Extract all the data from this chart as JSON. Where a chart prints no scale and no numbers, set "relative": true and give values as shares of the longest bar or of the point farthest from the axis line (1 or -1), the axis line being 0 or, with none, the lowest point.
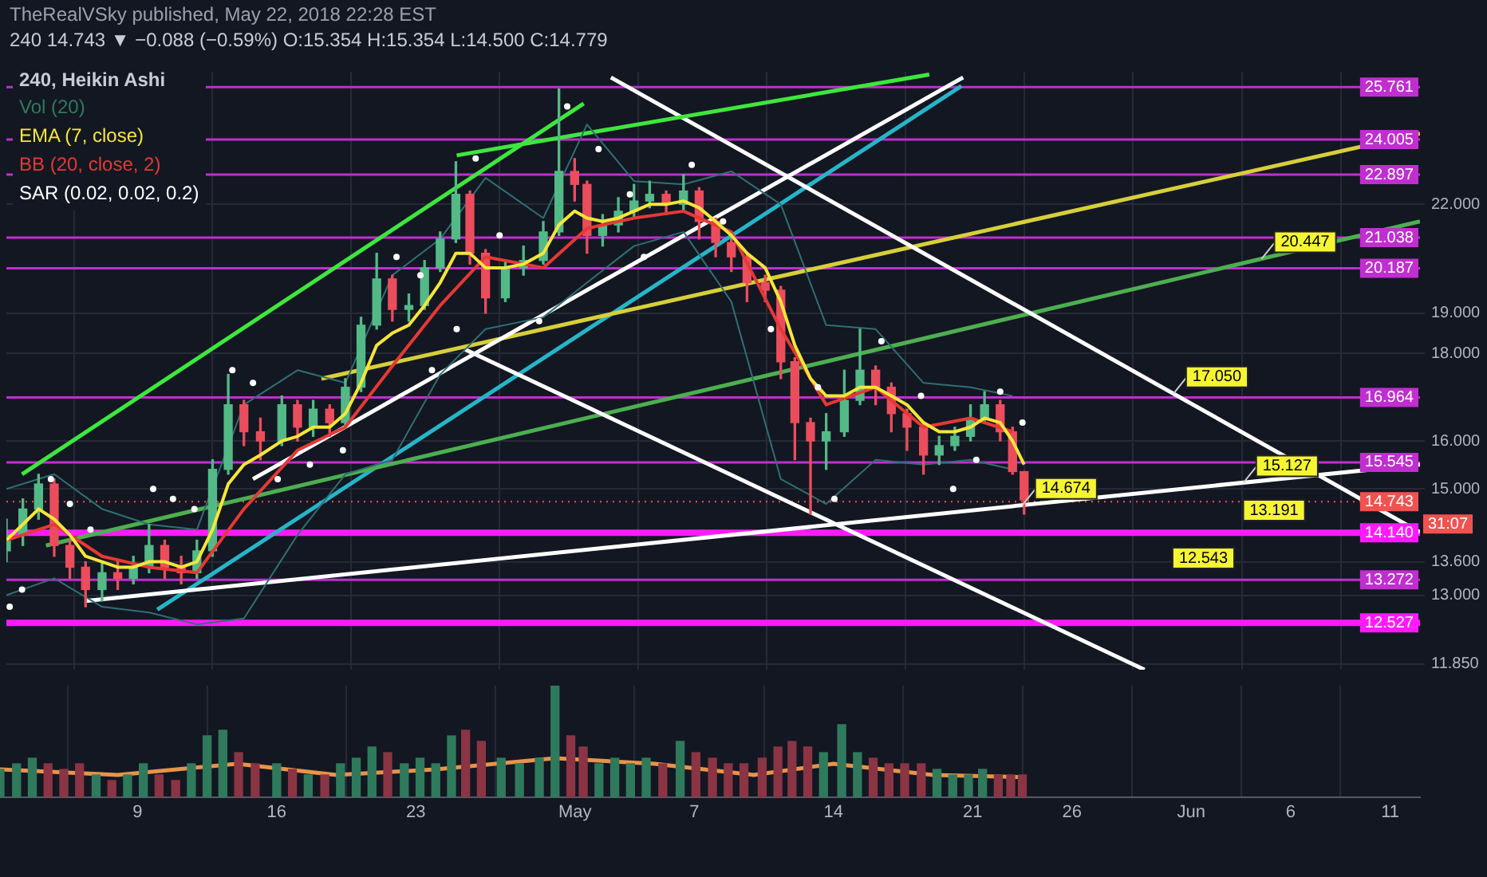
{
  "chart_data": [
    {
      "type": "candlestick",
      "title": "TheRealVSky published, May 22, 2018 22:28 EST",
      "subtitle": "240 14.743 ▼ −0.088 (−0.59%) O:15.354 H:15.354 L:14.500 C:14.779",
      "legend_title": "240, Heikin Ashi",
      "legend": "top left",
      "grid": true,
      "log": true,
      "tick_labels": "y",
      "x": [
        "2018-04-02T02:00",
        "2018-04-02T22:00",
        "2018-04-03T17:00",
        "2018-04-04T12:00",
        "2018-04-05T07:00",
        "2018-04-06T02:00",
        "2018-04-06T22:00",
        "2018-04-07T17:00",
        "2018-04-08T12:00",
        "2018-04-09T07:00",
        "2018-04-10T02:00",
        "2018-04-10T22:00",
        "2018-04-11T17:00",
        "2018-04-12T12:00",
        "2018-04-13T07:00",
        "2018-04-14T02:00",
        "2018-04-14T22:00",
        "2018-04-16T00:00",
        "2018-04-16T19:00",
        "2018-04-17T14:00",
        "2018-04-18T10:00",
        "2018-04-19T05:00",
        "2018-04-20T00:00",
        "2018-04-20T19:00",
        "2018-04-21T14:00",
        "2018-04-22T10:00",
        "2018-04-23T05:00",
        "2018-04-24T00:00",
        "2018-04-24T19:00",
        "2018-04-25T12:00",
        "2018-04-26T07:00",
        "2018-04-27T07:00",
        "2018-04-28T05:00",
        "2018-04-29T05:00",
        "2018-04-30T00:00",
        "2018-04-30T19:00",
        "2018-05-01T10:00",
        "2018-05-02T05:00",
        "2018-05-03T00:00",
        "2018-05-03T19:00",
        "2018-05-04T14:00",
        "2018-05-05T10:00",
        "2018-05-06T07:00",
        "2018-05-07T02:00",
        "2018-05-07T22:00",
        "2018-05-08T17:00",
        "2018-05-09T12:00",
        "2018-05-10T10:00",
        "2018-05-11T05:00",
        "2018-05-11T22:00",
        "2018-05-12T17:00",
        "2018-05-13T12:00",
        "2018-05-14T10:00",
        "2018-05-15T05:00",
        "2018-05-16T00:00",
        "2018-05-16T19:00",
        "2018-05-17T14:00",
        "2018-05-18T10:00",
        "2018-05-19T05:00",
        "2018-05-20T00:00",
        "2018-05-20T19:00",
        "2018-05-21T12:00",
        "2018-05-22T07:00",
        "2018-05-22T22:00",
        "2018-05-23T12:00"
      ],
      "ohlc": [
        [
          13.8,
          14.4,
          13.6,
          14.1
        ],
        [
          14.1,
          14.8,
          13.9,
          14.6
        ],
        [
          14.6,
          15.3,
          14.4,
          15.1
        ],
        [
          15.1,
          15.2,
          13.7,
          13.9
        ],
        [
          13.9,
          14.0,
          13.3,
          13.5
        ],
        [
          13.5,
          13.6,
          12.8,
          13.1
        ],
        [
          13.1,
          13.6,
          12.9,
          13.4
        ],
        [
          13.4,
          13.6,
          13.1,
          13.3
        ],
        [
          13.3,
          13.7,
          13.2,
          13.5
        ],
        [
          13.5,
          14.3,
          13.4,
          13.9
        ],
        [
          13.9,
          14.0,
          13.3,
          13.5
        ],
        [
          13.5,
          13.7,
          13.2,
          13.4
        ],
        [
          13.4,
          14.0,
          13.3,
          13.8
        ],
        [
          13.8,
          15.6,
          13.7,
          15.4
        ],
        [
          15.4,
          17.5,
          15.3,
          16.8
        ],
        [
          16.8,
          16.9,
          15.9,
          16.2
        ],
        [
          16.2,
          16.5,
          15.6,
          16.0
        ],
        [
          16.0,
          17.0,
          15.9,
          16.8
        ],
        [
          16.8,
          16.9,
          16.0,
          16.3
        ],
        [
          16.3,
          16.9,
          16.1,
          16.7
        ],
        [
          16.7,
          16.8,
          16.1,
          16.4
        ],
        [
          16.4,
          17.4,
          16.3,
          17.2
        ],
        [
          17.2,
          18.9,
          17.1,
          18.7
        ],
        [
          18.7,
          20.6,
          18.6,
          19.9
        ],
        [
          19.9,
          20.0,
          18.8,
          19.1
        ],
        [
          19.1,
          19.5,
          18.8,
          19.2
        ],
        [
          19.2,
          20.4,
          19.1,
          20.2
        ],
        [
          20.2,
          21.2,
          20.1,
          21.0
        ],
        [
          21.0,
          23.3,
          20.9,
          22.3
        ],
        [
          22.3,
          22.4,
          20.3,
          20.6
        ],
        [
          20.6,
          20.7,
          19.0,
          19.4
        ],
        [
          19.4,
          20.4,
          19.3,
          20.2
        ],
        [
          20.2,
          20.8,
          20.0,
          20.4
        ],
        [
          20.4,
          21.5,
          20.3,
          21.2
        ],
        [
          21.2,
          25.7,
          21.1,
          23.0
        ],
        [
          23.0,
          23.4,
          22.1,
          22.6
        ],
        [
          22.6,
          22.7,
          20.6,
          21.1
        ],
        [
          21.1,
          21.7,
          20.8,
          21.4
        ],
        [
          21.4,
          22.2,
          21.2,
          21.8
        ],
        [
          21.8,
          22.6,
          21.6,
          22.1
        ],
        [
          22.1,
          22.7,
          21.9,
          22.3
        ],
        [
          22.3,
          22.4,
          21.7,
          22.0
        ],
        [
          22.0,
          22.9,
          21.8,
          22.4
        ],
        [
          22.4,
          22.5,
          21.0,
          21.5
        ],
        [
          21.5,
          21.6,
          20.5,
          20.9
        ],
        [
          20.9,
          21.0,
          20.1,
          20.5
        ],
        [
          20.5,
          20.6,
          19.3,
          19.8
        ],
        [
          19.8,
          20.0,
          19.3,
          19.6
        ],
        [
          19.6,
          19.7,
          17.4,
          17.8
        ],
        [
          17.8,
          17.9,
          15.6,
          16.4
        ],
        [
          16.4,
          16.5,
          14.5,
          16.0
        ],
        [
          16.0,
          16.6,
          15.4,
          16.2
        ],
        [
          16.2,
          17.6,
          16.1,
          16.9
        ],
        [
          16.9,
          18.6,
          16.8,
          17.6
        ],
        [
          17.6,
          17.7,
          16.8,
          17.2
        ],
        [
          17.2,
          17.3,
          16.2,
          16.6
        ],
        [
          16.6,
          16.7,
          15.8,
          16.3
        ],
        [
          16.3,
          16.4,
          15.3,
          15.7
        ],
        [
          15.7,
          16.1,
          15.5,
          15.9
        ],
        [
          15.9,
          16.3,
          15.8,
          16.1
        ],
        [
          16.1,
          16.8,
          16.0,
          16.5
        ],
        [
          16.5,
          17.1,
          16.4,
          16.8
        ],
        [
          16.8,
          16.9,
          16.0,
          16.2
        ],
        [
          16.2,
          16.3,
          15.3,
          15.354
        ],
        [
          15.354,
          15.354,
          14.5,
          14.779
        ]
      ],
      "colors": [
        "#53b987",
        "#53b987",
        "#53b987",
        "#eb4d5c",
        "#eb4d5c",
        "#eb4d5c",
        "#53b987",
        "#eb4d5c",
        "#53b987",
        "#53b987",
        "#eb4d5c",
        "#eb4d5c",
        "#53b987",
        "#53b987",
        "#53b987",
        "#eb4d5c",
        "#eb4d5c",
        "#53b987",
        "#eb4d5c",
        "#53b987",
        "#eb4d5c",
        "#53b987",
        "#53b987",
        "#53b987",
        "#eb4d5c",
        "#53b987",
        "#53b987",
        "#53b987",
        "#53b987",
        "#eb4d5c",
        "#eb4d5c",
        "#53b987",
        "#53b987",
        "#53b987",
        "#53b987",
        "#eb4d5c",
        "#eb4d5c",
        "#53b987",
        "#53b987",
        "#53b987",
        "#53b987",
        "#eb4d5c",
        "#53b987",
        "#eb4d5c",
        "#eb4d5c",
        "#eb4d5c",
        "#eb4d5c",
        "#eb4d5c",
        "#eb4d5c",
        "#eb4d5c",
        "#eb4d5c",
        "#53b987",
        "#53b987",
        "#53b987",
        "#eb4d5c",
        "#eb4d5c",
        "#eb4d5c",
        "#eb4d5c",
        "#53b987",
        "#53b987",
        "#53b987",
        "#53b987",
        "#eb4d5c",
        "#eb4d5c",
        "#eb4d5c"
      ],
      "xlim": [
        "2018-04-02T02:00",
        "2018-06-12T12:00"
      ],
      "xticks": [
        {
          "value": "2018-04-09",
          "label": null
        },
        {
          "value": "2018-04-16",
          "label": null
        },
        {
          "value": "2018-04-23",
          "label": null
        },
        {
          "value": "2018-05-01",
          "label": null
        },
        {
          "value": "2018-05-07",
          "label": null
        },
        {
          "value": "2018-05-14",
          "label": null
        },
        {
          "value": "2018-05-21",
          "label": null
        },
        {
          "value": "2018-05-26",
          "label": null
        },
        {
          "value": "2018-06-01",
          "label": null
        },
        {
          "value": "2018-06-06",
          "label": null
        },
        {
          "value": "2018-06-11",
          "label": null
        }
      ],
      "ylim": [
        11.76,
        26.3
      ],
      "yticks": [
        {
          "value": 11.85,
          "label": "11.850"
        },
        {
          "value": 13,
          "label": "13.000"
        },
        {
          "value": 13.6,
          "label": "13.600"
        },
        {
          "value": 15,
          "label": "15.000"
        },
        {
          "value": 16,
          "label": "16.000"
        },
        {
          "value": 18,
          "label": "18.000"
        },
        {
          "value": 19,
          "label": "19.000"
        },
        {
          "value": 22,
          "label": "22.000"
        }
      ],
      "series": [
        {
          "type": "line",
          "name": "EMA (7, close)",
          "color": "#f5e63a",
          "values": [
            14.0,
            14.3,
            14.6,
            14.4,
            14.1,
            13.7,
            13.6,
            13.5,
            13.5,
            13.6,
            13.6,
            13.5,
            13.6,
            14.2,
            15.1,
            15.5,
            15.7,
            16.0,
            16.1,
            16.3,
            16.3,
            16.6,
            17.3,
            18.2,
            18.5,
            18.7,
            19.2,
            19.8,
            20.6,
            20.6,
            20.2,
            20.2,
            20.3,
            20.6,
            21.4,
            21.8,
            21.6,
            21.5,
            21.6,
            21.8,
            22.0,
            22.0,
            22.1,
            21.9,
            21.5,
            21.1,
            20.6,
            20.2,
            19.3,
            18.2,
            17.4,
            17.0,
            17.0,
            17.2,
            17.2,
            17.0,
            16.8,
            16.4,
            16.2,
            16.2,
            16.3,
            16.5,
            16.4,
            16.0,
            15.5
          ]
        },
        {
          "type": "line",
          "name": "BB (20, close, 2)",
          "color": "#e53935",
          "x": [
            "2018-04-02T02:00",
            "2018-04-04T12:00",
            "2018-04-06T22:00",
            "2018-04-09T07:00",
            "2018-04-11T17:00",
            "2018-04-14T02:00",
            "2018-04-16T19:00",
            "2018-04-19T05:00",
            "2018-04-21T14:00",
            "2018-04-24T00:00",
            "2018-04-26T07:00",
            "2018-04-29T05:00",
            "2018-05-01T10:00",
            "2018-05-03T19:00",
            "2018-05-06T07:00",
            "2018-05-08T17:00",
            "2018-05-11T05:00",
            "2018-05-13T12:00",
            "2018-05-16T00:00",
            "2018-05-18T10:00",
            "2018-05-20T19:00",
            "2018-05-22T22:00"
          ],
          "values": [
            14.0,
            14.3,
            13.7,
            13.5,
            13.4,
            14.6,
            15.8,
            16.3,
            17.7,
            19.2,
            20.5,
            20.2,
            21.3,
            21.6,
            21.8,
            21.2,
            18.6,
            16.8,
            17.2,
            16.3,
            16.5,
            16.2
          ]
        },
        {
          "type": "line",
          "color": "#2f6f73",
          "x": [
            "2018-04-02T02:00",
            "2018-04-04T12:00",
            "2018-04-06T22:00",
            "2018-04-09T07:00",
            "2018-04-11T17:00",
            "2018-04-14T02:00",
            "2018-04-16T19:00",
            "2018-04-19T05:00",
            "2018-04-21T14:00",
            "2018-04-24T00:00",
            "2018-04-26T07:00",
            "2018-04-29T05:00",
            "2018-05-01T10:00",
            "2018-05-03T19:00",
            "2018-05-06T07:00",
            "2018-05-08T17:00",
            "2018-05-11T05:00",
            "2018-05-13T12:00",
            "2018-05-16T00:00",
            "2018-05-18T10:00",
            "2018-05-20T19:00",
            "2018-05-22T22:00"
          ],
          "values": [
            13.0,
            13.3,
            12.8,
            12.7,
            12.5,
            12.6,
            14.1,
            15.3,
            15.6,
            17.5,
            18.6,
            18.9,
            19.8,
            20.8,
            21.2,
            19.3,
            15.2,
            14.7,
            15.6,
            15.5,
            15.6,
            15.4
          ]
        },
        {
          "type": "line",
          "color": "#2f6f73",
          "x": [
            "2018-04-02T02:00",
            "2018-04-04T12:00",
            "2018-04-06T22:00",
            "2018-04-09T07:00",
            "2018-04-11T17:00",
            "2018-04-14T02:00",
            "2018-04-16T19:00",
            "2018-04-19T05:00",
            "2018-04-21T14:00",
            "2018-04-24T00:00",
            "2018-04-26T07:00",
            "2018-04-29T05:00",
            "2018-05-01T10:00",
            "2018-05-03T19:00",
            "2018-05-06T07:00",
            "2018-05-08T17:00",
            "2018-05-11T05:00",
            "2018-05-13T12:00",
            "2018-05-16T00:00",
            "2018-05-18T10:00",
            "2018-05-20T19:00",
            "2018-05-22T22:00"
          ],
          "values": [
            15.0,
            15.3,
            14.6,
            14.3,
            14.2,
            16.8,
            17.6,
            17.3,
            20.0,
            21.0,
            22.8,
            21.6,
            24.5,
            22.7,
            22.6,
            23.0,
            22.0,
            18.7,
            18.6,
            17.3,
            17.2,
            17.0
          ]
        },
        {
          "type": "scatter",
          "name": "SAR (0.02, 0.02, 0.2)",
          "color": "#ffffff",
          "marker": "circle",
          "x": [
            "2018-04-02T06:00",
            "2018-04-02T21:00",
            "2018-04-04T08:00",
            "2018-04-05T07:00",
            "2018-04-06T08:00",
            "2018-04-09T12:00",
            "2018-04-10T12:00",
            "2018-04-11T14:00",
            "2018-04-13T12:00",
            "2018-04-14T13:00",
            "2018-04-15T19:00",
            "2018-04-17T10:00",
            "2018-04-19T02:00",
            "2018-04-21T19:00",
            "2018-04-23T00:00",
            "2018-04-23T14:00",
            "2018-04-24T20:00",
            "2018-04-25T19:00",
            "2018-04-27T00:00",
            "2018-04-29T00:00",
            "2018-04-30T10:00",
            "2018-05-02T00:00",
            "2018-05-03T14:00",
            "2018-05-04T07:00",
            "2018-05-06T17:00",
            "2018-05-08T07:00",
            "2018-05-10T17:00",
            "2018-05-13T02:00",
            "2018-05-13T22:00",
            "2018-05-16T07:00",
            "2018-05-18T07:00",
            "2018-05-19T22:00",
            "2018-05-21T02:00",
            "2018-05-22T07:00",
            "2018-05-23T10:00"
          ],
          "values": [
            12.8,
            13.1,
            15.2,
            14.7,
            14.2,
            15.0,
            14.8,
            14.6,
            17.6,
            17.3,
            15.2,
            15.5,
            15.8,
            20.5,
            20.0,
            17.6,
            18.6,
            23.4,
            21.1,
            18.8,
            25.1,
            23.7,
            22.3,
            20.5,
            23.2,
            21.5,
            18.6,
            17.2,
            14.8,
            18.3,
            17.0,
            15.0,
            15.6,
            17.1,
            16.4
          ]
        },
        {
          "type": "line",
          "color": "#3ee63e",
          "x": [
            "2018-04-02T21:00",
            "2018-05-01T06:00"
          ],
          "values": [
            15.3,
            25.2
          ]
        },
        {
          "type": "line",
          "color": "#3ee63e",
          "x": [
            "2018-04-24T20:00",
            "2018-05-18T17:00"
          ],
          "values": [
            23.5,
            26.2
          ]
        },
        {
          "type": "line",
          "color": "#ffffff",
          "x": [
            "2018-04-14T13:00",
            "2018-05-20T10:00"
          ],
          "values": [
            15.2,
            26.1
          ]
        },
        {
          "type": "line",
          "color": "#ffffff",
          "x": [
            "2018-04-06T02:00",
            "2018-06-12T12:00"
          ],
          "values": [
            12.9,
            15.5
          ]
        },
        {
          "type": "line",
          "color": "#ffffff",
          "x": [
            "2018-05-02T15:00",
            "2018-06-12T12:00"
          ],
          "values": [
            26.1,
            14.15
          ]
        },
        {
          "type": "line",
          "color": "#ffffff",
          "x": [
            "2018-04-25T06:00",
            "2018-05-29T14:00"
          ],
          "values": [
            18.1,
            11.76
          ]
        },
        {
          "type": "line",
          "color": "#d6cf3a",
          "x": [
            "2018-04-18T00:00",
            "2018-06-12T12:00"
          ],
          "values": [
            17.4,
            24.2
          ]
        },
        {
          "type": "line",
          "color": "#4caf50",
          "x": [
            "2018-04-04T02:00",
            "2018-06-12T12:00"
          ],
          "values": [
            13.9,
            21.5
          ]
        },
        {
          "type": "line",
          "color": "#26b5c8",
          "x": [
            "2018-04-09T17:00",
            "2018-05-20T08:00"
          ],
          "values": [
            12.75,
            25.8
          ]
        }
      ],
      "ref_lines": [
        {
          "axis": "y",
          "value": 25.761,
          "label": "25.761",
          "color": "#c02ed0"
        },
        {
          "axis": "y",
          "value": 24.005,
          "label": "24.005",
          "color": "#c02ed0"
        },
        {
          "axis": "y",
          "value": 22.897,
          "label": "22.897",
          "color": "#c02ed0"
        },
        {
          "axis": "y",
          "value": 21.038,
          "label": "21.038",
          "color": "#c02ed0"
        },
        {
          "axis": "y",
          "value": 20.187,
          "label": "20.187",
          "color": "#c02ed0"
        },
        {
          "axis": "y",
          "value": 16.964,
          "label": "16.964",
          "color": "#c02ed0"
        },
        {
          "axis": "y",
          "value": 15.545,
          "label": "15.545",
          "color": "#c02ed0"
        },
        {
          "axis": "y",
          "value": 14.743,
          "label": "14.743",
          "color": "#ef5350",
          "line_style": "dotted"
        },
        {
          "axis": "y",
          "value": 14.14,
          "label": "14.140",
          "color": "#ff1aff"
        },
        {
          "axis": "y",
          "value": 13.272,
          "label": "13.272",
          "color": "#c02ed0"
        },
        {
          "axis": "y",
          "value": 12.527,
          "label": "12.527",
          "color": "#ff1aff"
        }
      ],
      "annotations": [
        {
          "text": "20.447",
          "x": "2018-06-04T12:00",
          "y": 20.447
        },
        {
          "text": "17.050",
          "x": "2018-05-31T01:00",
          "y": 17.05
        },
        {
          "text": "15.127",
          "x": "2018-06-03T14:00",
          "y": 15.127
        },
        {
          "text": "14.674",
          "x": "2018-05-23T10:00",
          "y": 14.674
        },
        "31:07",
        "13.191",
        "12.543"
      ]
    },
    {
      "type": "bar",
      "relative": true,
      "tick_labels": "x",
      "legend": "top left",
      "grid": "x",
      "xlim": [
        "2018-04-02T02:00",
        "2018-06-12T12:00"
      ],
      "xticks": [
        {
          "value": "2018-04-09",
          "label": "9"
        },
        {
          "value": "2018-04-16",
          "label": "16"
        },
        {
          "value": "2018-04-23",
          "label": "23"
        },
        {
          "value": "2018-05-01",
          "label": "May"
        },
        {
          "value": "2018-05-07",
          "label": "7"
        },
        {
          "value": "2018-05-14",
          "label": "14"
        },
        {
          "value": "2018-05-21",
          "label": "21"
        },
        {
          "value": "2018-05-26",
          "label": "26"
        },
        {
          "value": "2018-06-01",
          "label": "Jun"
        },
        {
          "value": "2018-06-06",
          "label": "6"
        },
        {
          "value": "2018-06-11",
          "label": "11"
        }
      ],
      "x": [
        "2018-04-02T02:00",
        "2018-04-02T22:00",
        "2018-04-03T17:00",
        "2018-04-04T12:00",
        "2018-04-05T07:00",
        "2018-04-06T02:00",
        "2018-04-06T22:00",
        "2018-04-07T17:00",
        "2018-04-08T12:00",
        "2018-04-09T07:00",
        "2018-04-10T02:00",
        "2018-04-10T22:00",
        "2018-04-11T17:00",
        "2018-04-12T12:00",
        "2018-04-13T07:00",
        "2018-04-14T02:00",
        "2018-04-14T22:00",
        "2018-04-16T00:00",
        "2018-04-16T19:00",
        "2018-04-17T14:00",
        "2018-04-18T10:00",
        "2018-04-19T05:00",
        "2018-04-20T00:00",
        "2018-04-20T19:00",
        "2018-04-21T14:00",
        "2018-04-22T10:00",
        "2018-04-23T05:00",
        "2018-04-24T00:00",
        "2018-04-24T19:00",
        "2018-04-25T12:00",
        "2018-04-26T07:00",
        "2018-04-27T07:00",
        "2018-04-28T05:00",
        "2018-04-29T05:00",
        "2018-04-30T00:00",
        "2018-04-30T19:00",
        "2018-05-01T10:00",
        "2018-05-02T05:00",
        "2018-05-03T00:00",
        "2018-05-03T19:00",
        "2018-05-04T14:00",
        "2018-05-05T10:00",
        "2018-05-06T07:00",
        "2018-05-07T02:00",
        "2018-05-07T22:00",
        "2018-05-08T17:00",
        "2018-05-09T12:00",
        "2018-05-10T10:00",
        "2018-05-11T05:00",
        "2018-05-11T22:00",
        "2018-05-12T17:00",
        "2018-05-13T12:00",
        "2018-05-14T10:00",
        "2018-05-15T05:00",
        "2018-05-16T00:00",
        "2018-05-16T19:00",
        "2018-05-17T14:00",
        "2018-05-18T10:00",
        "2018-05-19T05:00",
        "2018-05-20T00:00",
        "2018-05-20T19:00",
        "2018-05-21T12:00",
        "2018-05-22T07:00",
        "2018-05-22T22:00",
        "2018-05-23T12:00"
      ],
      "series": [
        {
          "name": "Vol (20)",
          "values": [
            0.25,
            0.3,
            0.35,
            0.3,
            0.25,
            0.3,
            0.2,
            0.15,
            0.2,
            0.3,
            0.2,
            0.15,
            0.3,
            0.55,
            0.6,
            0.4,
            0.3,
            0.3,
            0.25,
            0.2,
            0.2,
            0.3,
            0.35,
            0.45,
            0.4,
            0.3,
            0.35,
            0.3,
            0.55,
            0.6,
            0.5,
            0.35,
            0.3,
            0.35,
            1,
            0.55,
            0.45,
            0.3,
            0.35,
            0.3,
            0.35,
            0.3,
            0.5,
            0.4,
            0.35,
            0.3,
            0.3,
            0.35,
            0.45,
            0.5,
            0.45,
            0.4,
            0.65,
            0.4,
            0.35,
            0.3,
            0.3,
            0.3,
            0.25,
            0.2,
            0.2,
            0.25,
            0.2,
            0.2,
            0.2
          ],
          "colors": [
            "#2f7a5c",
            "#2f7a5c",
            "#2f7a5c",
            "#8a3444",
            "#8a3444",
            "#8a3444",
            "#2f7a5c",
            "#8a3444",
            "#2f7a5c",
            "#2f7a5c",
            "#8a3444",
            "#8a3444",
            "#2f7a5c",
            "#2f7a5c",
            "#2f7a5c",
            "#8a3444",
            "#8a3444",
            "#2f7a5c",
            "#8a3444",
            "#2f7a5c",
            "#8a3444",
            "#2f7a5c",
            "#2f7a5c",
            "#2f7a5c",
            "#8a3444",
            "#2f7a5c",
            "#2f7a5c",
            "#2f7a5c",
            "#2f7a5c",
            "#8a3444",
            "#8a3444",
            "#2f7a5c",
            "#2f7a5c",
            "#2f7a5c",
            "#2f7a5c",
            "#8a3444",
            "#8a3444",
            "#2f7a5c",
            "#2f7a5c",
            "#2f7a5c",
            "#2f7a5c",
            "#8a3444",
            "#2f7a5c",
            "#8a3444",
            "#8a3444",
            "#8a3444",
            "#8a3444",
            "#8a3444",
            "#8a3444",
            "#8a3444",
            "#8a3444",
            "#2f7a5c",
            "#2f7a5c",
            "#2f7a5c",
            "#8a3444",
            "#8a3444",
            "#8a3444",
            "#8a3444",
            "#2f7a5c",
            "#2f7a5c",
            "#2f7a5c",
            "#2f7a5c",
            "#8a3444",
            "#8a3444",
            "#8a3444"
          ]
        },
        {
          "type": "line",
          "color": "#e8944a",
          "x": [
            "2018-04-02T02:00",
            "2018-04-08T00:00",
            "2018-04-14T00:00",
            "2018-04-19T00:00",
            "2018-04-24T00:00",
            "2018-04-30T00:00",
            "2018-05-05T00:00",
            "2018-05-10T00:00",
            "2018-05-14T00:00",
            "2018-05-19T00:00",
            "2018-05-23T12:00"
          ],
          "values": [
            0.25,
            0.2,
            0.3,
            0.2,
            0.25,
            0.35,
            0.3,
            0.2,
            0.3,
            0.2,
            0.18
          ]
        }
      ]
    }
  ]
}
